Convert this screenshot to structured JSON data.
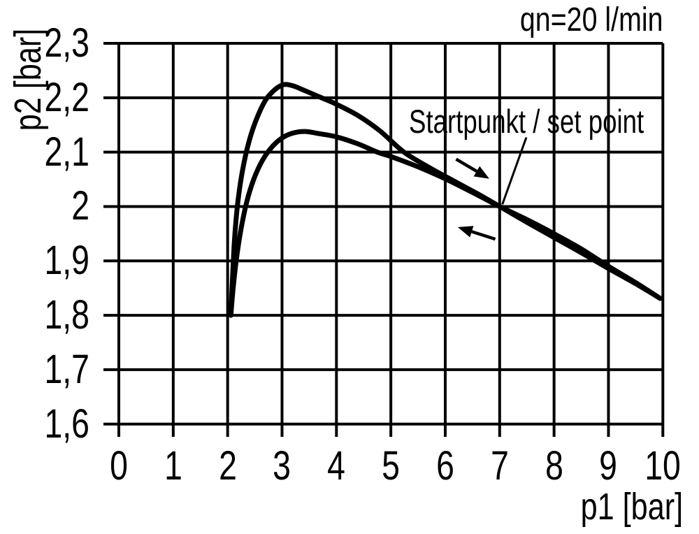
{
  "page": {
    "background": "#ffffff",
    "foreground": "#000000"
  },
  "chart_data": {
    "type": "line",
    "title": "qn=20 l/min",
    "xlabel": "p1 [bar]",
    "ylabel": "p2 [bar]",
    "xlim": [
      0,
      10
    ],
    "ylim": [
      1.6,
      2.3
    ],
    "grid": true,
    "legend": "none",
    "line_color": "#000000",
    "xticks": [
      {
        "v": 0,
        "label": "0"
      },
      {
        "v": 1,
        "label": "1"
      },
      {
        "v": 2,
        "label": "2"
      },
      {
        "v": 3,
        "label": "3"
      },
      {
        "v": 4,
        "label": "4"
      },
      {
        "v": 5,
        "label": "5"
      },
      {
        "v": 6,
        "label": "6"
      },
      {
        "v": 7,
        "label": "7"
      },
      {
        "v": 8,
        "label": "8"
      },
      {
        "v": 9,
        "label": "9"
      },
      {
        "v": 10,
        "label": "10"
      }
    ],
    "yticks": [
      {
        "v": 2.3,
        "label": "2,3"
      },
      {
        "v": 2.2,
        "label": "2,2"
      },
      {
        "v": 2.1,
        "label": "2,1"
      },
      {
        "v": 2.0,
        "label": "2"
      },
      {
        "v": 1.9,
        "label": "1,9"
      },
      {
        "v": 1.8,
        "label": "1,8"
      },
      {
        "v": 1.7,
        "label": "1,7"
      },
      {
        "v": 1.6,
        "label": "1,6"
      }
    ],
    "series": [
      {
        "name": "upper",
        "points": [
          [
            2.06,
            1.8
          ],
          [
            2.09,
            1.87
          ],
          [
            2.13,
            1.945
          ],
          [
            2.19,
            2.01
          ],
          [
            2.28,
            2.07
          ],
          [
            2.4,
            2.122
          ],
          [
            2.54,
            2.163
          ],
          [
            2.7,
            2.196
          ],
          [
            2.87,
            2.215
          ],
          [
            3.03,
            2.224
          ],
          [
            3.2,
            2.222
          ],
          [
            3.42,
            2.213
          ],
          [
            3.7,
            2.201
          ],
          [
            4.0,
            2.188
          ],
          [
            4.4,
            2.167
          ],
          [
            4.8,
            2.139
          ],
          [
            5.24,
            2.1
          ],
          [
            5.7,
            2.072
          ],
          [
            6.1,
            2.05
          ],
          [
            6.6,
            2.023
          ],
          [
            7.0,
            2.0
          ],
          [
            7.5,
            1.971
          ],
          [
            8.0,
            1.943
          ],
          [
            8.5,
            1.915
          ],
          [
            9.0,
            1.886
          ],
          [
            9.5,
            1.858
          ],
          [
            9.95,
            1.831
          ]
        ]
      },
      {
        "name": "lower",
        "points": [
          [
            2.06,
            1.8
          ],
          [
            2.1,
            1.848
          ],
          [
            2.16,
            1.902
          ],
          [
            2.24,
            1.955
          ],
          [
            2.35,
            2.008
          ],
          [
            2.48,
            2.05
          ],
          [
            2.64,
            2.085
          ],
          [
            2.82,
            2.11
          ],
          [
            3.0,
            2.126
          ],
          [
            3.2,
            2.135
          ],
          [
            3.42,
            2.138
          ],
          [
            3.68,
            2.134
          ],
          [
            4.0,
            2.128
          ],
          [
            4.4,
            2.115
          ],
          [
            4.75,
            2.1
          ],
          [
            5.0,
            2.092
          ],
          [
            5.5,
            2.073
          ],
          [
            6.0,
            2.051
          ],
          [
            6.5,
            2.026
          ],
          [
            7.0,
            2.0
          ],
          [
            7.5,
            1.976
          ],
          [
            8.0,
            1.95
          ],
          [
            8.5,
            1.922
          ],
          [
            9.0,
            1.89
          ],
          [
            9.5,
            1.86
          ],
          [
            9.95,
            1.831
          ]
        ]
      }
    ],
    "annotations": {
      "set_point_label": "Startpunkt / set point",
      "set_point": [
        7,
        2.0
      ],
      "leader": {
        "from": [
          7.49,
          2.127
        ],
        "to": [
          7.05,
          2.004
        ]
      },
      "arrows": [
        {
          "name": "forward",
          "from": [
            6.2,
            2.087
          ],
          "to": [
            6.81,
            2.051
          ]
        },
        {
          "name": "return",
          "from": [
            6.92,
            1.94
          ],
          "to": [
            6.23,
            1.962
          ]
        }
      ]
    }
  }
}
